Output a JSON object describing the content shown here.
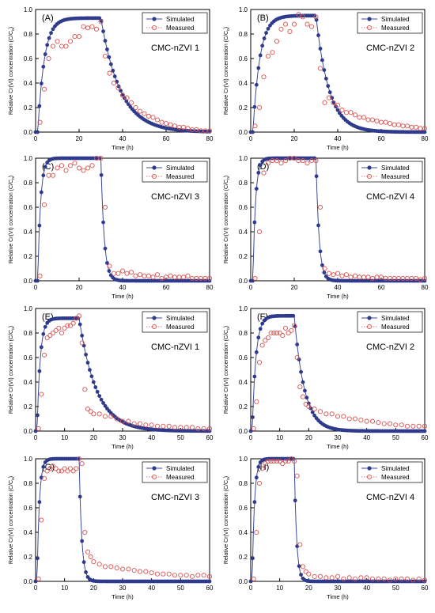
{
  "figure": {
    "ylabel_main": "Relative Cr(VI) concentration (C/C",
    "ylabel_sub": "o",
    "ylabel_end": ")",
    "xlabel": "Time (h)",
    "legend_simulated": "Simulated",
    "legend_measured": "Measured",
    "colors": {
      "simulated": "#2e3a8c",
      "simulated_line": "#3a4a9c",
      "measured": "#d9534f"
    }
  },
  "chart_data": [
    {
      "type": "line",
      "tag": "(A)",
      "label": "CMC-nZVI 1",
      "xlim": [
        0,
        80
      ],
      "ylim": [
        0,
        1.0
      ],
      "xticks": [
        "0",
        "20",
        "40",
        "60",
        "80"
      ],
      "yticks": [
        "0.0",
        "0.2",
        "0.4",
        "0.6",
        "0.8",
        "1.0"
      ],
      "series": [
        {
          "name": "Simulated",
          "model": {
            "t_end": 30,
            "rise_tau": 3.0,
            "fall_tau": 9.0,
            "peak": 0.93,
            "lag": 1.0
          }
        },
        {
          "name": "Measured",
          "x": [
            2,
            4,
            6,
            8,
            10,
            12,
            14,
            16,
            18,
            20,
            22,
            24,
            26,
            28,
            30,
            32,
            34,
            36,
            38,
            40,
            42,
            44,
            46,
            48,
            50,
            52,
            54,
            56,
            58,
            60,
            62,
            64,
            66,
            68,
            70,
            72,
            74,
            76,
            78,
            80
          ],
          "y": [
            0.08,
            0.35,
            0.6,
            0.7,
            0.74,
            0.7,
            0.7,
            0.74,
            0.78,
            0.78,
            0.86,
            0.85,
            0.86,
            0.84,
            0.9,
            0.62,
            0.48,
            0.4,
            0.36,
            0.3,
            0.28,
            0.24,
            0.2,
            0.17,
            0.15,
            0.13,
            0.12,
            0.1,
            0.08,
            0.07,
            0.06,
            0.05,
            0.04,
            0.04,
            0.03,
            0.02,
            0.02,
            0.01,
            0.01,
            0.01
          ]
        }
      ]
    },
    {
      "type": "line",
      "tag": "(B)",
      "label": "CMC-nZVI 2",
      "xlim": [
        0,
        80
      ],
      "ylim": [
        0,
        1.0
      ],
      "xticks": [
        "0",
        "20",
        "40",
        "60",
        "80"
      ],
      "yticks": [
        "0.0",
        "0.2",
        "0.4",
        "0.6",
        "0.8",
        "1.0"
      ],
      "series": [
        {
          "name": "Simulated",
          "model": {
            "t_end": 30,
            "rise_tau": 3.2,
            "fall_tau": 6.0,
            "peak": 0.95,
            "lag": 1.0
          }
        },
        {
          "name": "Measured",
          "x": [
            2,
            4,
            6,
            8,
            10,
            12,
            14,
            16,
            18,
            20,
            22,
            24,
            26,
            28,
            30,
            32,
            34,
            36,
            38,
            40,
            42,
            44,
            46,
            48,
            50,
            52,
            54,
            56,
            58,
            60,
            62,
            64,
            66,
            68,
            70,
            72,
            74,
            76,
            78,
            80
          ],
          "y": [
            0.05,
            0.2,
            0.45,
            0.62,
            0.65,
            0.74,
            0.84,
            0.88,
            0.82,
            0.88,
            0.96,
            0.94,
            0.88,
            0.86,
            0.94,
            0.52,
            0.24,
            0.28,
            0.24,
            0.22,
            0.18,
            0.16,
            0.16,
            0.14,
            0.12,
            0.12,
            0.1,
            0.1,
            0.09,
            0.08,
            0.08,
            0.07,
            0.06,
            0.06,
            0.05,
            0.05,
            0.04,
            0.04,
            0.03,
            0.03
          ]
        }
      ]
    },
    {
      "type": "line",
      "tag": "(C)",
      "label": "CMC-nZVI 3",
      "xlim": [
        0,
        80
      ],
      "ylim": [
        0,
        1.0
      ],
      "xticks": [
        "0",
        "20",
        "40",
        "60",
        "80"
      ],
      "yticks": [
        "0.0",
        "0.2",
        "0.4",
        "0.6",
        "0.8",
        "1.0"
      ],
      "series": [
        {
          "name": "Simulated",
          "model": {
            "t_end": 30,
            "rise_tau": 1.3,
            "fall_tau": 1.5,
            "peak": 1.0,
            "lag": 1.0
          }
        },
        {
          "name": "Measured",
          "x": [
            2,
            4,
            6,
            8,
            10,
            12,
            14,
            16,
            18,
            20,
            22,
            24,
            26,
            28,
            30,
            32,
            34,
            36,
            38,
            40,
            42,
            44,
            46,
            48,
            50,
            52,
            54,
            56,
            58,
            60,
            62,
            64,
            66,
            68,
            70,
            72,
            74,
            76,
            78,
            80
          ],
          "y": [
            0.04,
            0.62,
            0.86,
            0.86,
            0.92,
            0.94,
            0.9,
            0.94,
            0.96,
            0.92,
            0.9,
            0.92,
            0.94,
            1.0,
            1.0,
            0.6,
            0.12,
            0.06,
            0.06,
            0.08,
            0.06,
            0.07,
            0.04,
            0.05,
            0.04,
            0.04,
            0.03,
            0.05,
            0.02,
            0.03,
            0.04,
            0.03,
            0.03,
            0.03,
            0.04,
            0.02,
            0.02,
            0.02,
            0.02,
            0.02
          ]
        }
      ]
    },
    {
      "type": "line",
      "tag": "(D)",
      "label": "CMC-nZVI 4",
      "xlim": [
        0,
        80
      ],
      "ylim": [
        0,
        1.0
      ],
      "xticks": [
        "0",
        "20",
        "40",
        "60",
        "80"
      ],
      "yticks": [
        "0.0",
        "0.2",
        "0.4",
        "0.6",
        "0.8",
        "1.0"
      ],
      "series": [
        {
          "name": "Simulated",
          "model": {
            "t_end": 30,
            "rise_tau": 1.2,
            "fall_tau": 1.4,
            "peak": 1.0,
            "lag": 1.0
          }
        },
        {
          "name": "Measured",
          "x": [
            2,
            4,
            6,
            8,
            10,
            12,
            14,
            16,
            18,
            20,
            22,
            24,
            26,
            28,
            30,
            32,
            34,
            36,
            38,
            40,
            42,
            44,
            46,
            48,
            50,
            52,
            54,
            56,
            58,
            60,
            62,
            64,
            66,
            68,
            70,
            72,
            74,
            76,
            78,
            80
          ],
          "y": [
            0.02,
            0.4,
            0.88,
            0.96,
            0.98,
            0.98,
            0.96,
            0.98,
            1.0,
            1.0,
            0.98,
            0.98,
            0.96,
            0.98,
            0.98,
            0.6,
            0.1,
            0.06,
            0.05,
            0.06,
            0.04,
            0.05,
            0.03,
            0.04,
            0.03,
            0.03,
            0.03,
            0.02,
            0.03,
            0.03,
            0.02,
            0.02,
            0.02,
            0.02,
            0.02,
            0.02,
            0.02,
            0.02,
            0.01,
            0.02
          ]
        }
      ]
    },
    {
      "type": "line",
      "tag": "(E)",
      "label": "CMC-nZVI 1",
      "xlim": [
        0,
        60
      ],
      "ylim": [
        0,
        1.0
      ],
      "xticks": [
        "0",
        "10",
        "20",
        "30",
        "40",
        "50",
        "60"
      ],
      "yticks": [
        "0.0",
        "0.2",
        "0.4",
        "0.6",
        "0.8",
        "1.0"
      ],
      "series": [
        {
          "name": "Simulated",
          "model": {
            "t_end": 15,
            "rise_tau": 1.1,
            "fall_tau": 6.0,
            "peak": 0.92,
            "lag": 0.5
          }
        },
        {
          "name": "Measured",
          "x": [
            1,
            2,
            3,
            4,
            5,
            6,
            7,
            8,
            9,
            10,
            11,
            12,
            13,
            14,
            15,
            16,
            17,
            18,
            19,
            20,
            22,
            24,
            26,
            28,
            30,
            32,
            34,
            36,
            38,
            40,
            42,
            44,
            46,
            48,
            50,
            52,
            54,
            56,
            58,
            60
          ],
          "y": [
            0.02,
            0.3,
            0.62,
            0.76,
            0.78,
            0.8,
            0.82,
            0.84,
            0.8,
            0.84,
            0.86,
            0.86,
            0.88,
            0.92,
            0.94,
            0.72,
            0.34,
            0.18,
            0.16,
            0.14,
            0.14,
            0.12,
            0.12,
            0.1,
            0.08,
            0.08,
            0.06,
            0.06,
            0.05,
            0.05,
            0.04,
            0.04,
            0.04,
            0.03,
            0.03,
            0.03,
            0.03,
            0.02,
            0.02,
            0.02
          ]
        }
      ]
    },
    {
      "type": "line",
      "tag": "(F)",
      "label": "CMC-nZVI 2",
      "xlim": [
        0,
        60
      ],
      "ylim": [
        0,
        1.0
      ],
      "xticks": [
        "0",
        "10",
        "20",
        "30",
        "40",
        "50",
        "60"
      ],
      "yticks": [
        "0.0",
        "0.2",
        "0.4",
        "0.6",
        "0.8",
        "1.0"
      ],
      "series": [
        {
          "name": "Simulated",
          "model": {
            "t_end": 15,
            "rise_tau": 1.3,
            "fall_tau": 3.5,
            "peak": 0.94,
            "lag": 0.5
          }
        },
        {
          "name": "Measured",
          "x": [
            1,
            2,
            3,
            4,
            5,
            6,
            7,
            8,
            9,
            10,
            11,
            12,
            13,
            14,
            15,
            16,
            17,
            18,
            19,
            20,
            22,
            24,
            26,
            28,
            30,
            32,
            34,
            36,
            38,
            40,
            42,
            44,
            46,
            48,
            50,
            52,
            54,
            56,
            58,
            60
          ],
          "y": [
            0.02,
            0.24,
            0.56,
            0.7,
            0.74,
            0.76,
            0.8,
            0.8,
            0.8,
            0.8,
            0.78,
            0.84,
            0.8,
            0.82,
            0.86,
            0.6,
            0.36,
            0.28,
            0.22,
            0.2,
            0.18,
            0.16,
            0.14,
            0.14,
            0.12,
            0.12,
            0.1,
            0.1,
            0.09,
            0.08,
            0.08,
            0.07,
            0.06,
            0.06,
            0.05,
            0.05,
            0.04,
            0.04,
            0.04,
            0.04
          ]
        }
      ]
    },
    {
      "type": "line",
      "tag": "(G)",
      "label": "CMC-nZVI 3",
      "xlim": [
        0,
        60
      ],
      "ylim": [
        0,
        1.0
      ],
      "xticks": [
        "0",
        "10",
        "20",
        "30",
        "40",
        "50",
        "60"
      ],
      "yticks": [
        "0.0",
        "0.2",
        "0.4",
        "0.6",
        "0.8",
        "1.0"
      ],
      "series": [
        {
          "name": "Simulated",
          "model": {
            "t_end": 15,
            "rise_tau": 0.8,
            "fall_tau": 0.9,
            "peak": 1.0,
            "lag": 0.5
          }
        },
        {
          "name": "Measured",
          "x": [
            1,
            2,
            3,
            4,
            5,
            6,
            7,
            8,
            9,
            10,
            11,
            12,
            13,
            14,
            15,
            16,
            17,
            18,
            19,
            20,
            22,
            24,
            26,
            28,
            30,
            32,
            34,
            36,
            38,
            40,
            42,
            44,
            46,
            48,
            50,
            52,
            54,
            56,
            58,
            60
          ],
          "y": [
            0.02,
            0.5,
            0.84,
            0.9,
            0.92,
            0.94,
            0.92,
            0.9,
            0.9,
            0.92,
            0.9,
            0.92,
            0.9,
            0.92,
            1.0,
            0.96,
            0.4,
            0.24,
            0.2,
            0.16,
            0.14,
            0.12,
            0.12,
            0.11,
            0.1,
            0.1,
            0.09,
            0.08,
            0.08,
            0.07,
            0.06,
            0.06,
            0.06,
            0.05,
            0.05,
            0.05,
            0.04,
            0.05,
            0.05,
            0.04
          ]
        }
      ]
    },
    {
      "type": "line",
      "tag": "(H)",
      "label": "CMC-nZVI 4",
      "xlim": [
        0,
        60
      ],
      "ylim": [
        0,
        1.0
      ],
      "xticks": [
        "0",
        "10",
        "20",
        "30",
        "40",
        "50",
        "60"
      ],
      "yticks": [
        "0.0",
        "0.2",
        "0.4",
        "0.6",
        "0.8",
        "1.0"
      ],
      "series": [
        {
          "name": "Simulated",
          "model": {
            "t_end": 15,
            "rise_tau": 0.8,
            "fall_tau": 0.8,
            "peak": 1.0,
            "lag": 0.5
          }
        },
        {
          "name": "Measured",
          "x": [
            1,
            2,
            3,
            4,
            5,
            6,
            7,
            8,
            9,
            10,
            11,
            12,
            13,
            14,
            15,
            16,
            17,
            18,
            19,
            20,
            22,
            24,
            26,
            28,
            30,
            32,
            34,
            36,
            38,
            40,
            42,
            44,
            46,
            48,
            50,
            52,
            54,
            56,
            58,
            60
          ],
          "y": [
            0.02,
            0.4,
            0.8,
            0.92,
            0.96,
            0.98,
            0.98,
            0.98,
            0.98,
            0.98,
            0.96,
            0.98,
            0.98,
            1.0,
            0.98,
            0.86,
            0.3,
            0.12,
            0.08,
            0.06,
            0.04,
            0.04,
            0.03,
            0.03,
            0.04,
            0.02,
            0.03,
            0.02,
            0.03,
            0.03,
            0.02,
            0.02,
            0.02,
            0.01,
            0.02,
            0.02,
            0.02,
            0.01,
            0.02,
            0.01
          ]
        }
      ]
    }
  ]
}
